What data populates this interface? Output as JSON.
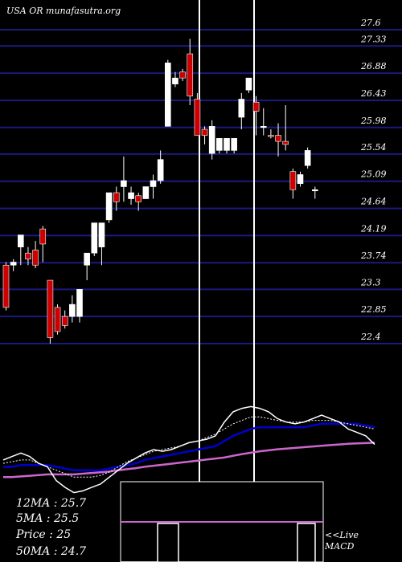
{
  "watermark": "USA OR munafasutra.org",
  "legend": {
    "ma12": "12MA : 25.7",
    "ma5": "5MA : 25.5",
    "price": "Price   : 25",
    "ma50": "50MA : 24.7"
  },
  "macd_label_1": "<<Live",
  "macd_label_2": "MACD",
  "colors": {
    "background": "#000000",
    "grid": "#1a1a80",
    "up_candle": "#ffffff",
    "down_candle": "#cc0000",
    "ma_blue": "#0000cc",
    "ma_magenta": "#cc66cc",
    "ma_white": "#ffffff"
  },
  "chart_data": {
    "type": "candlestick",
    "title": "",
    "y_ticks": [
      27.6,
      27.33,
      26.88,
      26.43,
      25.98,
      25.54,
      25.09,
      24.64,
      24.19,
      23.74,
      23.3,
      22.85,
      22.4
    ],
    "ylim": [
      22.4,
      27.6
    ],
    "candles": [
      {
        "o": 23.7,
        "h": 23.75,
        "l": 22.95,
        "c": 23.0,
        "dir": "down"
      },
      {
        "o": 23.7,
        "h": 23.8,
        "l": 23.6,
        "c": 23.75,
        "dir": "up"
      },
      {
        "o": 24.0,
        "h": 24.2,
        "l": 23.7,
        "c": 24.2,
        "dir": "up"
      },
      {
        "o": 23.9,
        "h": 24.0,
        "l": 23.7,
        "c": 23.8,
        "dir": "down"
      },
      {
        "o": 23.95,
        "h": 24.1,
        "l": 23.65,
        "c": 23.7,
        "dir": "down"
      },
      {
        "o": 24.3,
        "h": 24.35,
        "l": 23.75,
        "c": 24.05,
        "dir": "down"
      },
      {
        "o": 23.45,
        "h": 23.45,
        "l": 22.4,
        "c": 22.5,
        "dir": "down"
      },
      {
        "o": 23.0,
        "h": 23.05,
        "l": 22.55,
        "c": 22.6,
        "dir": "down"
      },
      {
        "o": 22.85,
        "h": 22.95,
        "l": 22.65,
        "c": 22.7,
        "dir": "down"
      },
      {
        "o": 22.85,
        "h": 23.2,
        "l": 22.75,
        "c": 23.05,
        "dir": "up"
      },
      {
        "o": 22.85,
        "h": 23.3,
        "l": 22.75,
        "c": 23.3,
        "dir": "up"
      },
      {
        "o": 23.7,
        "h": 23.9,
        "l": 23.45,
        "c": 23.9,
        "dir": "up"
      },
      {
        "o": 23.9,
        "h": 24.4,
        "l": 23.85,
        "c": 24.4,
        "dir": "up"
      },
      {
        "o": 24.0,
        "h": 24.4,
        "l": 23.7,
        "c": 24.4,
        "dir": "up"
      },
      {
        "o": 24.45,
        "h": 24.9,
        "l": 24.4,
        "c": 24.9,
        "dir": "up"
      },
      {
        "o": 24.9,
        "h": 25.0,
        "l": 24.6,
        "c": 24.75,
        "dir": "down"
      },
      {
        "o": 25.1,
        "h": 25.5,
        "l": 24.75,
        "c": 25.0,
        "dir": "up"
      },
      {
        "o": 24.9,
        "h": 25.0,
        "l": 24.7,
        "c": 24.8,
        "dir": "up"
      },
      {
        "o": 24.85,
        "h": 24.9,
        "l": 24.6,
        "c": 24.75,
        "dir": "down"
      },
      {
        "o": 24.8,
        "h": 25.0,
        "l": 24.8,
        "c": 25.0,
        "dir": "up"
      },
      {
        "o": 25.0,
        "h": 25.2,
        "l": 24.8,
        "c": 25.1,
        "dir": "up"
      },
      {
        "o": 25.1,
        "h": 25.6,
        "l": 25.05,
        "c": 25.45,
        "dir": "up"
      },
      {
        "o": 26.0,
        "h": 27.1,
        "l": 26.0,
        "c": 27.05,
        "dir": "up"
      },
      {
        "o": 26.7,
        "h": 26.9,
        "l": 26.65,
        "c": 26.8,
        "dir": "up"
      },
      {
        "o": 26.8,
        "h": 26.95,
        "l": 26.75,
        "c": 26.9,
        "dir": "down"
      },
      {
        "o": 27.2,
        "h": 27.45,
        "l": 26.35,
        "c": 26.5,
        "dir": "down"
      },
      {
        "o": 26.45,
        "h": 26.55,
        "l": 25.85,
        "c": 25.85,
        "dir": "down"
      },
      {
        "o": 25.95,
        "h": 26.0,
        "l": 25.7,
        "c": 25.85,
        "dir": "down"
      },
      {
        "o": 26.0,
        "h": 26.1,
        "l": 25.45,
        "c": 25.55,
        "dir": "up"
      },
      {
        "o": 25.8,
        "h": 25.8,
        "l": 25.55,
        "c": 25.6,
        "dir": "up"
      },
      {
        "o": 25.8,
        "h": 25.8,
        "l": 25.55,
        "c": 25.6,
        "dir": "up"
      },
      {
        "o": 25.8,
        "h": 25.8,
        "l": 25.55,
        "c": 25.6,
        "dir": "up"
      },
      {
        "o": 26.15,
        "h": 26.55,
        "l": 25.95,
        "c": 26.45,
        "dir": "up"
      },
      {
        "o": 26.6,
        "h": 26.8,
        "l": 26.55,
        "c": 26.8,
        "dir": "up"
      },
      {
        "o": 26.4,
        "h": 26.5,
        "l": 25.85,
        "c": 26.25,
        "dir": "down"
      },
      {
        "o": 26.0,
        "h": 26.3,
        "l": 25.85,
        "c": 26.0,
        "dir": "up"
      },
      {
        "o": 25.85,
        "h": 25.95,
        "l": 25.8,
        "c": 25.85,
        "dir": "down"
      },
      {
        "o": 25.85,
        "h": 26.05,
        "l": 25.5,
        "c": 25.75,
        "dir": "down"
      },
      {
        "o": 25.75,
        "h": 26.35,
        "l": 25.6,
        "c": 25.7,
        "dir": "down"
      },
      {
        "o": 25.25,
        "h": 25.3,
        "l": 24.8,
        "c": 24.95,
        "dir": "down"
      },
      {
        "o": 25.05,
        "h": 25.25,
        "l": 25.0,
        "c": 25.2,
        "dir": "up"
      },
      {
        "o": 25.35,
        "h": 25.65,
        "l": 25.3,
        "c": 25.6,
        "dir": "up"
      },
      {
        "o": 24.95,
        "h": 25.0,
        "l": 24.8,
        "c": 24.95,
        "dir": "up"
      }
    ],
    "ma_lines": {
      "white_fast": [
        23.8,
        23.9,
        24.0,
        23.9,
        23.7,
        23.6,
        23.2,
        23.0,
        22.85,
        22.9,
        23.0,
        23.1,
        23.3,
        23.5,
        23.7,
        23.85,
        24.0,
        24.1,
        24.05,
        24.1,
        24.2,
        24.3,
        24.35,
        24.4,
        24.5,
        24.9,
        25.2,
        25.3,
        25.35,
        25.3,
        25.2,
        25.0,
        24.9,
        24.85,
        24.9,
        25.0,
        25.1,
        25.0,
        24.9,
        24.7,
        24.6,
        24.5,
        24.25
      ],
      "white_dotted": [
        23.7,
        23.75,
        23.8,
        23.8,
        23.7,
        23.6,
        23.5,
        23.4,
        23.3,
        23.3,
        23.3,
        23.35,
        23.45,
        23.6,
        23.75,
        23.85,
        23.95,
        24.05,
        24.1,
        24.15,
        24.2,
        24.3,
        24.35,
        24.45,
        24.55,
        24.7,
        24.85,
        24.95,
        25.05,
        25.05,
        25.0,
        24.95,
        24.9,
        24.9,
        24.9,
        24.95,
        24.95,
        24.95,
        24.9,
        24.85,
        24.8,
        24.75,
        24.7
      ],
      "blue": [
        23.6,
        23.6,
        23.65,
        23.65,
        23.65,
        23.65,
        23.6,
        23.55,
        23.5,
        23.5,
        23.5,
        23.5,
        23.55,
        23.6,
        23.65,
        23.7,
        23.8,
        23.85,
        23.9,
        23.95,
        24.0,
        24.05,
        24.1,
        24.15,
        24.2,
        24.35,
        24.5,
        24.6,
        24.7,
        24.75,
        24.75,
        24.75,
        24.75,
        24.75,
        24.75,
        24.8,
        24.85,
        24.85,
        24.85,
        24.85,
        24.85,
        24.8,
        24.75
      ],
      "magenta": [
        23.3,
        23.3,
        23.32,
        23.34,
        23.36,
        23.38,
        23.38,
        23.38,
        23.38,
        23.4,
        23.42,
        23.44,
        23.46,
        23.5,
        23.53,
        23.56,
        23.6,
        23.63,
        23.66,
        23.69,
        23.72,
        23.75,
        23.78,
        23.81,
        23.84,
        23.87,
        23.92,
        23.97,
        24.01,
        24.05,
        24.08,
        24.11,
        24.13,
        24.15,
        24.17,
        24.19,
        24.21,
        24.23,
        24.25,
        24.27,
        24.28,
        24.29,
        24.3
      ]
    }
  }
}
